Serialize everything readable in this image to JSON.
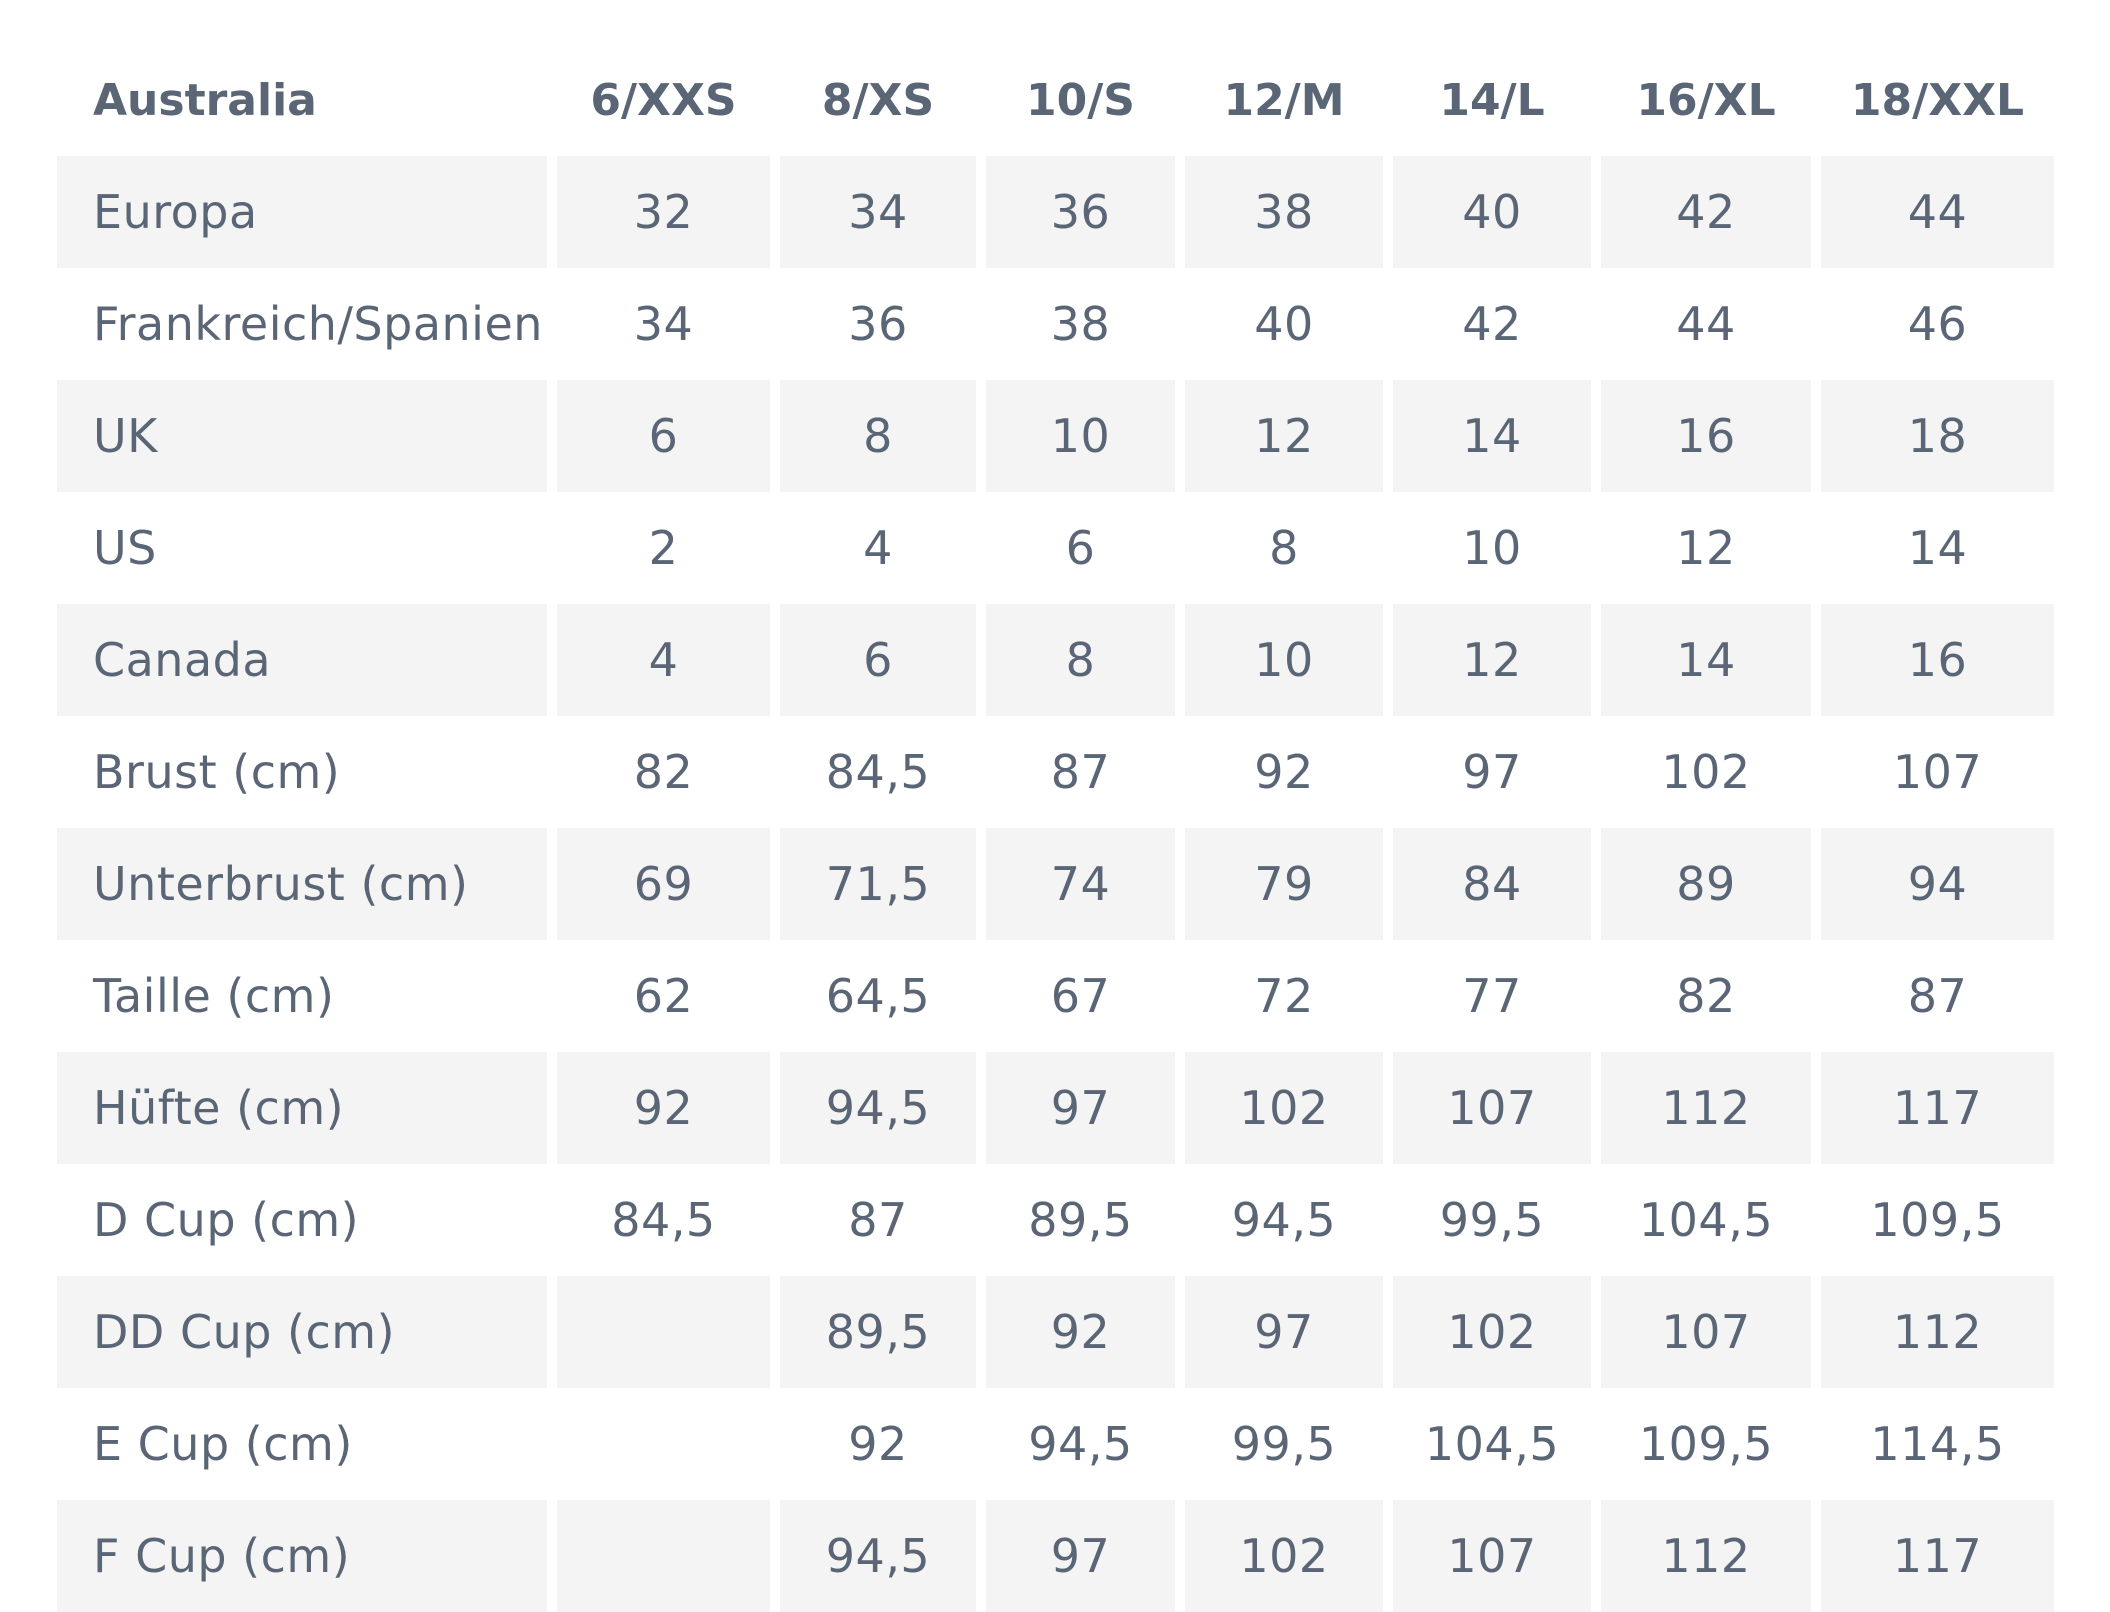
{
  "table": {
    "header": {
      "label": "Australia",
      "sizes": [
        "6/XXS",
        "8/XS",
        "10/S",
        "12/M",
        "14/L",
        "16/XL",
        "18/XXL"
      ]
    },
    "rows": [
      {
        "label": "Europa",
        "values": [
          "32",
          "34",
          "36",
          "38",
          "40",
          "42",
          "44"
        ]
      },
      {
        "label": "Frankreich/Spanien",
        "values": [
          "34",
          "36",
          "38",
          "40",
          "42",
          "44",
          "46"
        ]
      },
      {
        "label": "UK",
        "values": [
          "6",
          "8",
          "10",
          "12",
          "14",
          "16",
          "18"
        ]
      },
      {
        "label": "US",
        "values": [
          "2",
          "4",
          "6",
          "8",
          "10",
          "12",
          "14"
        ]
      },
      {
        "label": "Canada",
        "values": [
          "4",
          "6",
          "8",
          "10",
          "12",
          "14",
          "16"
        ]
      },
      {
        "label": "Brust (cm)",
        "values": [
          "82",
          "84,5",
          "87",
          "92",
          "97",
          "102",
          "107"
        ]
      },
      {
        "label": "Unterbrust (cm)",
        "values": [
          "69",
          "71,5",
          "74",
          "79",
          "84",
          "89",
          "94"
        ]
      },
      {
        "label": "Taille (cm)",
        "values": [
          "62",
          "64,5",
          "67",
          "72",
          "77",
          "82",
          "87"
        ]
      },
      {
        "label": "Hüfte (cm)",
        "values": [
          "92",
          "94,5",
          "97",
          "102",
          "107",
          "112",
          "117"
        ]
      },
      {
        "label": "D Cup (cm)",
        "values": [
          "84,5",
          "87",
          "89,5",
          "94,5",
          "99,5",
          "104,5",
          "109,5"
        ]
      },
      {
        "label": "DD Cup (cm)",
        "values": [
          "",
          "89,5",
          "92",
          "97",
          "102",
          "107",
          "112"
        ]
      },
      {
        "label": "E Cup (cm)",
        "values": [
          "",
          "92",
          "94,5",
          "99,5",
          "104,5",
          "109,5",
          "114,5"
        ]
      },
      {
        "label": "F Cup (cm)",
        "values": [
          "",
          "94,5",
          "97",
          "102",
          "107",
          "112",
          "117"
        ]
      }
    ]
  },
  "colors": {
    "text": "#5a6676",
    "row_shade": "#f4f4f4",
    "background": "#ffffff"
  }
}
